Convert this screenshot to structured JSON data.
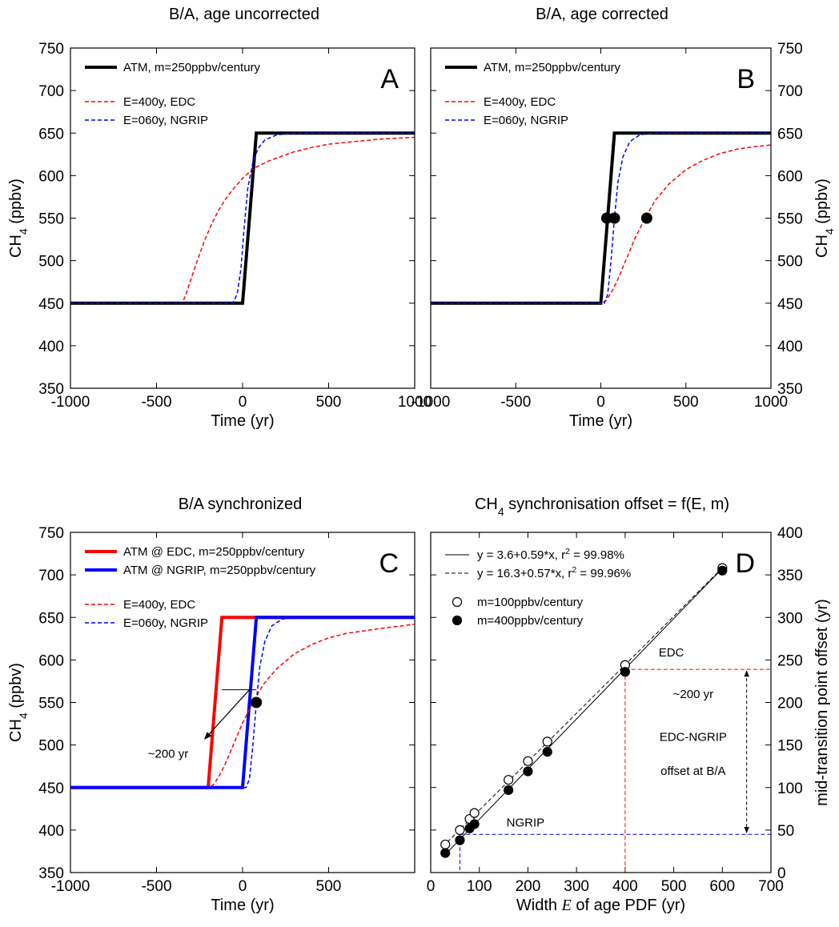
{
  "chart_data": [
    {
      "id": "A",
      "type": "line",
      "title": "B/A, age uncorrected",
      "panel_label": "A",
      "xlabel": "Time (yr)",
      "ylabel": "CH₄ (ppbv)",
      "xlim": [
        -1000,
        1000
      ],
      "ylim": [
        350,
        750
      ],
      "xticks": [
        -1000,
        -500,
        0,
        500,
        1000
      ],
      "yticks": [
        350,
        400,
        450,
        500,
        550,
        600,
        650,
        700,
        750
      ],
      "y_axis_side": "left",
      "grid": false,
      "legend_position": "top-left",
      "series": [
        {
          "name": "ATM, m=250ppbv/century",
          "color": "#000000",
          "style": "solid",
          "width": 4,
          "points": [
            [
              -1000,
              450
            ],
            [
              0,
              450
            ],
            [
              80,
              650
            ],
            [
              1000,
              650
            ]
          ]
        },
        {
          "name": "E=400y, EDC",
          "color": "#ff0000",
          "style": "dashed",
          "width": 1.5,
          "points": [
            [
              -1000,
              450
            ],
            [
              -350,
              450
            ],
            [
              -330,
              460
            ],
            [
              -300,
              478
            ],
            [
              -260,
              502
            ],
            [
              -220,
              524
            ],
            [
              -180,
              543
            ],
            [
              -140,
              559
            ],
            [
              -100,
              572
            ],
            [
              -60,
              583
            ],
            [
              -20,
              592
            ],
            [
              0,
              597
            ],
            [
              40,
              604
            ],
            [
              80,
              610
            ],
            [
              150,
              617
            ],
            [
              200,
              621
            ],
            [
              300,
              628
            ],
            [
              400,
              633
            ],
            [
              500,
              637
            ],
            [
              600,
              639
            ],
            [
              700,
              641
            ],
            [
              800,
              643
            ],
            [
              900,
              644
            ],
            [
              1000,
              645
            ]
          ]
        },
        {
          "name": "E=060y, NGRIP",
          "color": "#0000ff",
          "style": "dashed",
          "width": 1.5,
          "points": [
            [
              -1000,
              450
            ],
            [
              -70,
              450
            ],
            [
              -50,
              452
            ],
            [
              -30,
              462
            ],
            [
              -10,
              490
            ],
            [
              10,
              540
            ],
            [
              30,
              585
            ],
            [
              60,
              616
            ],
            [
              90,
              632
            ],
            [
              130,
              642
            ],
            [
              200,
              648
            ],
            [
              300,
              650
            ],
            [
              1000,
              650
            ]
          ]
        }
      ]
    },
    {
      "id": "B",
      "type": "line",
      "title": "B/A, age corrected",
      "panel_label": "B",
      "xlabel": "Time (yr)",
      "ylabel": "CH₄ (ppbv)",
      "xlim": [
        -1000,
        1000
      ],
      "ylim": [
        350,
        750
      ],
      "xticks": [
        -1000,
        -500,
        0,
        500,
        1000
      ],
      "yticks": [
        350,
        400,
        450,
        500,
        550,
        600,
        650,
        700,
        750
      ],
      "y_axis_side": "right",
      "grid": false,
      "legend_position": "top-left",
      "series": [
        {
          "name": "ATM, m=250ppbv/century",
          "color": "#000000",
          "style": "solid",
          "width": 4,
          "points": [
            [
              -1000,
              450
            ],
            [
              0,
              450
            ],
            [
              80,
              650
            ],
            [
              1000,
              650
            ]
          ]
        },
        {
          "name": "E=400y, EDC",
          "color": "#ff0000",
          "style": "dashed",
          "width": 1.5,
          "points": [
            [
              -1000,
              450
            ],
            [
              0,
              450
            ],
            [
              30,
              453
            ],
            [
              60,
              462
            ],
            [
              100,
              478
            ],
            [
              150,
              502
            ],
            [
              200,
              526
            ],
            [
              260,
              550
            ],
            [
              320,
              571
            ],
            [
              400,
              590
            ],
            [
              500,
              607
            ],
            [
              600,
              618
            ],
            [
              700,
              626
            ],
            [
              800,
              631
            ],
            [
              900,
              634
            ],
            [
              1000,
              636
            ]
          ]
        },
        {
          "name": "E=060y, NGRIP",
          "color": "#0000ff",
          "style": "dashed",
          "width": 1.5,
          "points": [
            [
              -1000,
              450
            ],
            [
              20,
              450
            ],
            [
              40,
              460
            ],
            [
              60,
              500
            ],
            [
              80,
              550
            ],
            [
              100,
              592
            ],
            [
              130,
              622
            ],
            [
              170,
              640
            ],
            [
              230,
              648
            ],
            [
              300,
              650
            ],
            [
              1000,
              650
            ]
          ]
        }
      ],
      "markers": [
        [
          35,
          550
        ],
        [
          80,
          550
        ],
        [
          270,
          550
        ]
      ]
    },
    {
      "id": "C",
      "type": "line",
      "title": "B/A synchronized",
      "panel_label": "C",
      "xlabel": "Time (yr)",
      "ylabel": "CH₄ (ppbv)",
      "xlim": [
        -1000,
        1000
      ],
      "ylim": [
        350,
        750
      ],
      "xticks": [
        -1000,
        -500,
        0,
        500
      ],
      "yticks": [
        350,
        400,
        450,
        500,
        550,
        600,
        650,
        700,
        750
      ],
      "y_axis_side": "left",
      "grid": false,
      "legend_position": "top-left",
      "series": [
        {
          "name": "ATM @ EDC, m=250ppbv/century",
          "color": "#ff0000",
          "style": "solid",
          "width": 4,
          "points": [
            [
              -1000,
              450
            ],
            [
              -200,
              450
            ],
            [
              -120,
              650
            ],
            [
              1000,
              650
            ]
          ]
        },
        {
          "name": "ATM @ NGRIP, m=250ppbv/century",
          "color": "#0000ff",
          "style": "solid",
          "width": 4,
          "points": [
            [
              -1000,
              450
            ],
            [
              0,
              450
            ],
            [
              80,
              650
            ],
            [
              1000,
              650
            ]
          ]
        },
        {
          "name": "E=400y, EDC",
          "color": "#ff0000",
          "style": "dashed",
          "width": 1.5,
          "points": [
            [
              -1000,
              450
            ],
            [
              -200,
              450
            ],
            [
              -170,
              453
            ],
            [
              -140,
              462
            ],
            [
              -100,
              478
            ],
            [
              -50,
              502
            ],
            [
              0,
              526
            ],
            [
              60,
              550
            ],
            [
              120,
              571
            ],
            [
              200,
              590
            ],
            [
              300,
              607
            ],
            [
              400,
              618
            ],
            [
              500,
              626
            ],
            [
              600,
              631
            ],
            [
              800,
              637
            ],
            [
              1000,
              642
            ]
          ]
        },
        {
          "name": "E=060y, NGRIP",
          "color": "#0000ff",
          "style": "dashed",
          "width": 1.5,
          "points": [
            [
              -1000,
              450
            ],
            [
              20,
              450
            ],
            [
              40,
              460
            ],
            [
              60,
              500
            ],
            [
              80,
              550
            ],
            [
              100,
              592
            ],
            [
              130,
              622
            ],
            [
              170,
              640
            ],
            [
              230,
              648
            ],
            [
              300,
              650
            ],
            [
              1000,
              650
            ]
          ]
        }
      ],
      "markers": [
        [
          80,
          550
        ]
      ],
      "annotation": {
        "text": "~200 yr",
        "arrow_from": [
          40,
          565
        ],
        "arrow_to": [
          -220,
          507
        ],
        "bracket_x": [
          -120,
          80
        ],
        "bracket_y": 565
      }
    },
    {
      "id": "D",
      "type": "scatter",
      "title": "CH₄ synchronisation offset = f(E, m)",
      "panel_label": "D",
      "xlabel": "Width E of age PDF (yr)",
      "ylabel": "mid-transition point offset (yr)",
      "xlim": [
        0,
        700
      ],
      "ylim": [
        0,
        400
      ],
      "xticks": [
        0,
        100,
        200,
        300,
        400,
        500,
        600,
        700
      ],
      "yticks": [
        0,
        50,
        100,
        150,
        200,
        250,
        300,
        350,
        400
      ],
      "y_axis_side": "right",
      "grid": false,
      "legend_position": "top-left",
      "fits": [
        {
          "label": "y = 3.6+0.59*x, r² = 99.98%",
          "intercept": 3.6,
          "slope": 0.59,
          "style": "solid"
        },
        {
          "label": "y = 16.3+0.57*x, r² = 99.96%",
          "intercept": 16.3,
          "slope": 0.57,
          "style": "dashed"
        }
      ],
      "series": [
        {
          "name": "m=100ppbv/century",
          "marker": "open-circle",
          "x": [
            30,
            60,
            80,
            90,
            160,
            200,
            240,
            400,
            600
          ],
          "y": [
            33,
            50,
            63,
            70,
            109,
            131,
            154,
            244,
            358
          ]
        },
        {
          "name": "m=400ppbv/century",
          "marker": "filled-circle",
          "x": [
            30,
            60,
            80,
            90,
            160,
            200,
            240,
            400,
            600
          ],
          "y": [
            23,
            38,
            52,
            57,
            97,
            119,
            142,
            236,
            355
          ]
        }
      ],
      "reference_lines": [
        {
          "label": "EDC",
          "color": "#ff0000",
          "x": 400,
          "y": 239
        },
        {
          "label": "NGRIP",
          "color": "#0000ff",
          "x": 60,
          "y": 45
        }
      ],
      "offset_annotation": {
        "x": 650,
        "from": 239,
        "to": 45,
        "lines": [
          "~200 yr",
          "EDC-NGRIP",
          "offset at B/A"
        ]
      }
    }
  ]
}
